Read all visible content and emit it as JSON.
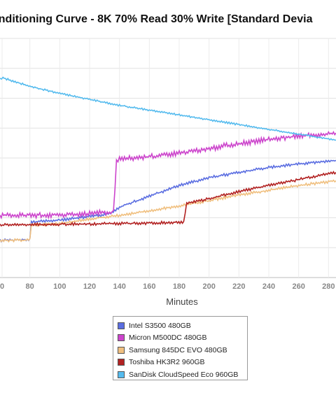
{
  "chart_data": {
    "type": "line",
    "title": "onditioning Curve - 8K 70% Read 30% Write [Standard Devia",
    "xlabel": "Minutes",
    "xlim": [
      60,
      285
    ],
    "x_ticks": [
      "0",
      "80",
      "100",
      "120",
      "140",
      "160",
      "180",
      "200",
      "220",
      "240",
      "260",
      "280"
    ],
    "grid": true,
    "legend_position": "bottom-center",
    "series": [
      {
        "name": "Intel S3500 480GB",
        "color": "#5b6ee1",
        "x": [
          60,
          80,
          81,
          100,
          120,
          135,
          140,
          160,
          180,
          200,
          220,
          240,
          260,
          285
        ],
        "y": [
          0.155,
          0.16,
          0.232,
          0.24,
          0.255,
          0.268,
          0.295,
          0.34,
          0.385,
          0.418,
          0.44,
          0.46,
          0.475,
          0.49
        ]
      },
      {
        "name": "Micron M500DC 480GB",
        "color": "#cc44cc",
        "x": [
          60,
          100,
          120,
          136,
          138,
          140,
          160,
          180,
          200,
          220,
          240,
          260,
          285
        ],
        "y": [
          0.26,
          0.262,
          0.267,
          0.275,
          0.485,
          0.495,
          0.505,
          0.52,
          0.54,
          0.56,
          0.578,
          0.592,
          0.605
        ]
      },
      {
        "name": "Samsung 845DC EVO 480GB",
        "color": "#f0c080",
        "x": [
          60,
          80,
          81,
          100,
          120,
          140,
          160,
          180,
          200,
          220,
          240,
          260,
          285
        ],
        "y": [
          0.155,
          0.157,
          0.22,
          0.225,
          0.245,
          0.26,
          0.28,
          0.3,
          0.322,
          0.345,
          0.365,
          0.385,
          0.405
        ]
      },
      {
        "name": "Toshiba HK3R2 960GB",
        "color": "#b22222",
        "x": [
          60,
          80,
          100,
          120,
          140,
          160,
          183,
          185,
          200,
          220,
          240,
          260,
          285
        ],
        "y": [
          0.22,
          0.222,
          0.223,
          0.224,
          0.226,
          0.228,
          0.232,
          0.31,
          0.33,
          0.36,
          0.385,
          0.41,
          0.44
        ]
      },
      {
        "name": "SanDisk CloudSpeed Eco 960GB",
        "color": "#55bbee",
        "x": [
          60,
          62,
          80,
          100,
          120,
          140,
          160,
          180,
          200,
          220,
          240,
          260,
          285
        ],
        "y": [
          0.83,
          0.835,
          0.8,
          0.77,
          0.745,
          0.72,
          0.7,
          0.68,
          0.66,
          0.64,
          0.62,
          0.6,
          0.575
        ]
      }
    ]
  }
}
